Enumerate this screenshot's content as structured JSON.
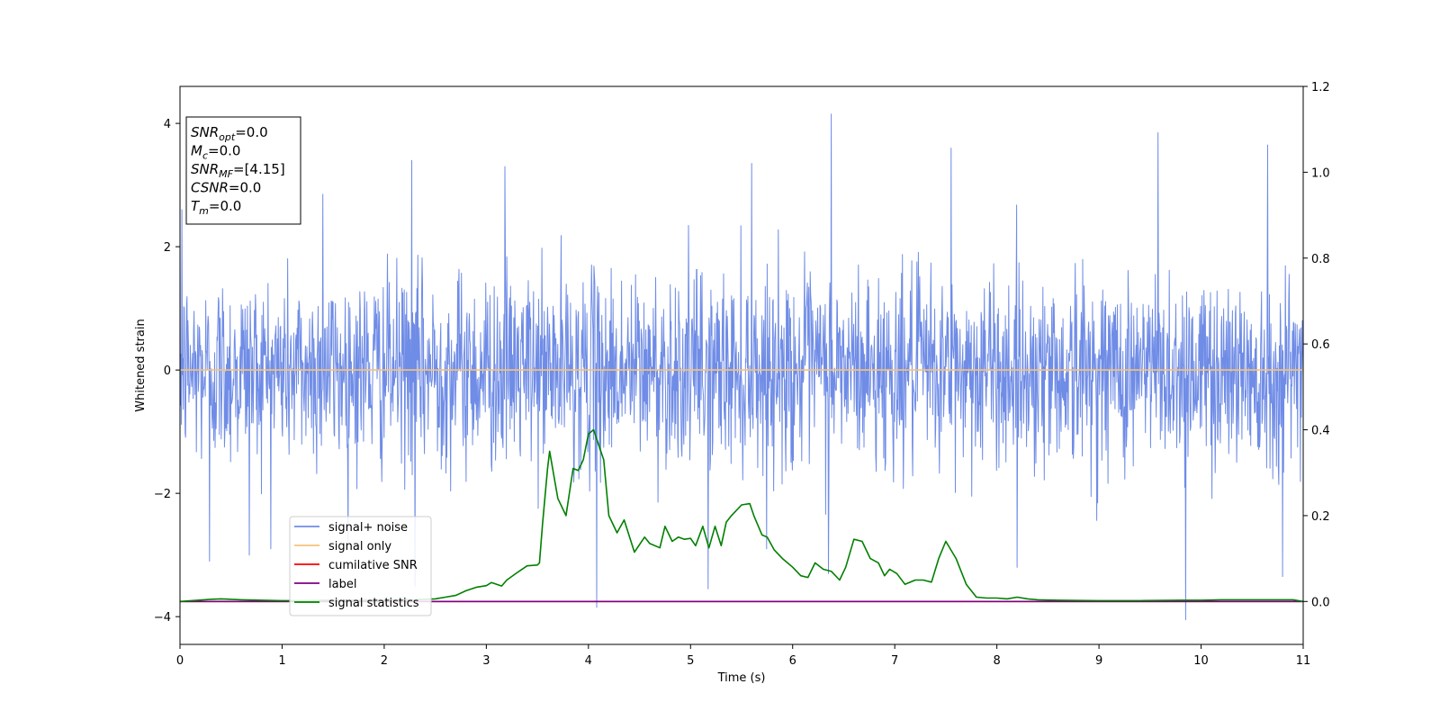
{
  "chart_data": {
    "type": "line",
    "title": "",
    "xlabel": "Time (s)",
    "ylabel": "Whitened strain",
    "xlim": [
      0,
      11
    ],
    "ylim": [
      -4.45,
      4.6
    ],
    "y2lim": [
      -0.1,
      1.2
    ],
    "grid": false,
    "legend_position": "lower-left",
    "x_ticks": [
      0,
      1,
      2,
      3,
      4,
      5,
      6,
      7,
      8,
      9,
      10,
      11
    ],
    "x_tick_labels": [
      "0",
      "1",
      "2",
      "3",
      "4",
      "5",
      "6",
      "7",
      "8",
      "9",
      "10",
      "11"
    ],
    "y_ticks": [
      -4,
      -2,
      0,
      2,
      4
    ],
    "y_tick_labels": [
      "−4",
      "−2",
      "0",
      "2",
      "4"
    ],
    "y2_ticks": [
      0.0,
      0.2,
      0.4,
      0.6,
      0.8,
      1.0,
      1.2
    ],
    "y2_tick_labels": [
      "0.0",
      "0.2",
      "0.4",
      "0.6",
      "0.8",
      "1.0",
      "1.2"
    ],
    "annotation": {
      "lines": [
        {
          "sym": "SNR",
          "sub": "opt",
          "value": "=0.0"
        },
        {
          "sym": "M",
          "sub": "c",
          "value": "=0.0"
        },
        {
          "sym": "SNR",
          "sub": "MF",
          "value": "=[4.15]"
        },
        {
          "sym": "CSNR",
          "sub": "",
          "value": "=0.0"
        },
        {
          "sym": "T",
          "sub": "m",
          "value": "=0.0"
        }
      ]
    },
    "series": [
      {
        "name": "signal+ noise",
        "color": "#6f8ce6",
        "axis": "left",
        "kind": "noise",
        "sample_count": 2400,
        "std": 0.78,
        "spikes": [
          {
            "x": 0.02,
            "y": 2.6
          },
          {
            "x": 0.29,
            "y": -3.1
          },
          {
            "x": 0.68,
            "y": -3.0
          },
          {
            "x": 1.4,
            "y": 2.85
          },
          {
            "x": 2.27,
            "y": 3.4
          },
          {
            "x": 2.3,
            "y": -3.5
          },
          {
            "x": 3.18,
            "y": 3.3
          },
          {
            "x": 4.08,
            "y": -3.85
          },
          {
            "x": 5.17,
            "y": -3.55
          },
          {
            "x": 5.6,
            "y": 3.35
          },
          {
            "x": 6.38,
            "y": 4.15
          },
          {
            "x": 6.35,
            "y": -3.3
          },
          {
            "x": 7.55,
            "y": 3.6
          },
          {
            "x": 8.2,
            "y": -3.2
          },
          {
            "x": 9.58,
            "y": 3.85
          },
          {
            "x": 9.85,
            "y": -4.05
          },
          {
            "x": 10.65,
            "y": 3.65
          },
          {
            "x": 10.8,
            "y": -3.35
          }
        ]
      },
      {
        "name": "signal only",
        "color": "#f5c27a",
        "axis": "left",
        "x": [
          0,
          11
        ],
        "y": [
          0,
          0
        ]
      },
      {
        "name": "cumilative SNR",
        "color": "#ff0000",
        "axis": "right",
        "x": [
          0,
          11
        ],
        "y": [
          0,
          0
        ]
      },
      {
        "name": "label",
        "color": "#800080",
        "axis": "right",
        "x": [
          0,
          11
        ],
        "y": [
          0,
          0
        ]
      },
      {
        "name": "signal statistics",
        "color": "#008000",
        "axis": "right",
        "x": [
          0,
          0.3,
          0.4,
          0.5,
          0.6,
          0.8,
          1.0,
          1.2,
          1.5,
          1.8,
          2.1,
          2.3,
          2.5,
          2.6,
          2.7,
          2.8,
          2.9,
          3.0,
          3.05,
          3.15,
          3.2,
          3.3,
          3.4,
          3.5,
          3.52,
          3.55,
          3.6,
          3.62,
          3.7,
          3.78,
          3.85,
          3.9,
          3.95,
          4.0,
          4.05,
          4.15,
          4.2,
          4.28,
          4.35,
          4.45,
          4.55,
          4.6,
          4.7,
          4.75,
          4.82,
          4.88,
          4.94,
          5.0,
          5.05,
          5.12,
          5.18,
          5.24,
          5.3,
          5.35,
          5.4,
          5.5,
          5.58,
          5.62,
          5.7,
          5.75,
          5.82,
          5.9,
          6.0,
          6.08,
          6.15,
          6.22,
          6.3,
          6.38,
          6.46,
          6.52,
          6.6,
          6.68,
          6.76,
          6.84,
          6.9,
          6.95,
          7.02,
          7.1,
          7.2,
          7.28,
          7.36,
          7.43,
          7.5,
          7.6,
          7.7,
          7.8,
          7.9,
          8.0,
          8.1,
          8.2,
          8.3,
          8.4,
          8.6,
          9.0,
          9.4,
          9.8,
          9.95,
          10.0,
          10.2,
          10.4,
          10.6,
          10.9,
          11.0
        ],
        "y": [
          0.0,
          0.005,
          0.006,
          0.005,
          0.004,
          0.003,
          0.002,
          0.002,
          0.003,
          0.003,
          0.004,
          0.004,
          0.006,
          0.01,
          0.014,
          0.025,
          0.033,
          0.037,
          0.044,
          0.036,
          0.05,
          0.067,
          0.083,
          0.085,
          0.09,
          0.18,
          0.31,
          0.35,
          0.24,
          0.2,
          0.31,
          0.305,
          0.33,
          0.39,
          0.4,
          0.33,
          0.2,
          0.16,
          0.19,
          0.115,
          0.15,
          0.135,
          0.125,
          0.175,
          0.14,
          0.15,
          0.145,
          0.147,
          0.13,
          0.175,
          0.125,
          0.175,
          0.13,
          0.185,
          0.2,
          0.225,
          0.228,
          0.2,
          0.155,
          0.15,
          0.12,
          0.1,
          0.08,
          0.06,
          0.056,
          0.09,
          0.075,
          0.07,
          0.05,
          0.08,
          0.145,
          0.14,
          0.1,
          0.09,
          0.06,
          0.075,
          0.065,
          0.04,
          0.05,
          0.05,
          0.045,
          0.1,
          0.14,
          0.1,
          0.04,
          0.01,
          0.008,
          0.008,
          0.006,
          0.01,
          0.006,
          0.004,
          0.003,
          0.002,
          0.002,
          0.003,
          0.003,
          0.003,
          0.004,
          0.004,
          0.004,
          0.004,
          0.0
        ]
      }
    ]
  }
}
